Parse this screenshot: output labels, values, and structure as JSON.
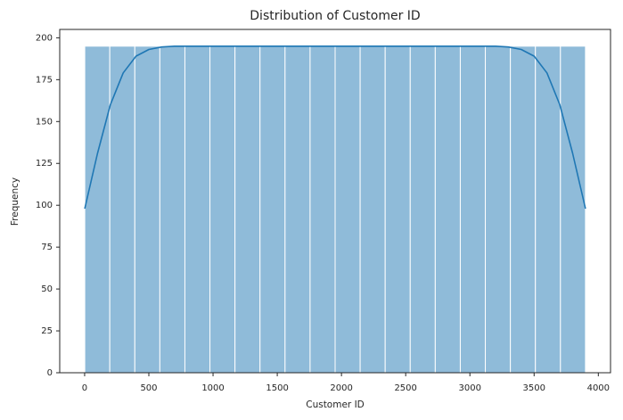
{
  "chart_data": {
    "type": "histogram",
    "title": "Distribution of Customer ID",
    "xlabel": "Customer ID",
    "ylabel": "Frequency",
    "bins": [
      1,
      195.95,
      390.9,
      585.85,
      780.8,
      975.75,
      1170.7,
      1365.65,
      1560.6,
      1755.55,
      1950.5,
      2145.45,
      2340.4,
      2535.35,
      2730.3,
      2925.25,
      3120.2,
      3315.15,
      3510.1,
      3705.05,
      3900
    ],
    "counts": [
      195,
      195,
      195,
      195,
      195,
      195,
      195,
      195,
      195,
      195,
      195,
      195,
      195,
      195,
      195,
      195,
      195,
      195,
      195,
      195
    ],
    "color": "#8fbbd9",
    "edgecolor": "#ffffff",
    "kde": {
      "color": "#1f77b4",
      "x": [
        1,
        100,
        200,
        300,
        400,
        500,
        600,
        700,
        1000,
        2000,
        3000,
        3200,
        3300,
        3400,
        3500,
        3600,
        3700,
        3800,
        3900
      ],
      "values": [
        98,
        131,
        160,
        179,
        189,
        193,
        194.5,
        195,
        195,
        195,
        195,
        195,
        194.5,
        193,
        189,
        179,
        160,
        131,
        98
      ]
    },
    "xlim": [
      -194,
      4095
    ],
    "ylim": [
      0,
      205
    ],
    "xticks": [
      0,
      500,
      1000,
      1500,
      2000,
      2500,
      3000,
      3500,
      4000
    ],
    "yticks": [
      0,
      25,
      50,
      75,
      100,
      125,
      150,
      175,
      200
    ]
  }
}
